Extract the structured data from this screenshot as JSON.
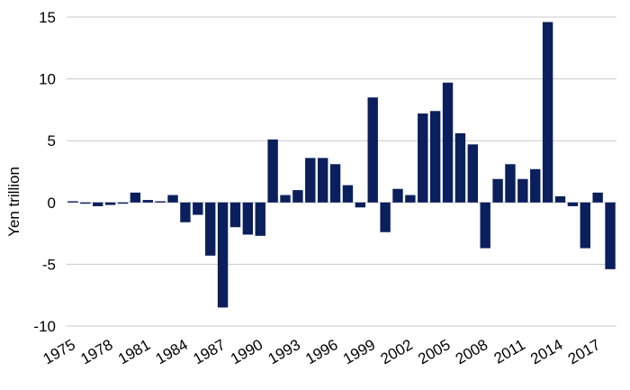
{
  "chart_data": {
    "type": "bar",
    "ylabel": "Yen trillion",
    "xlabel": "",
    "title": "",
    "ylim": [
      -10,
      15
    ],
    "yticks": [
      -10,
      -5,
      0,
      5,
      10,
      15
    ],
    "ytick_labels": [
      "-10",
      "-5",
      "0",
      "5",
      "10",
      "15"
    ],
    "xtick_labels": [
      "1975",
      "1978",
      "1981",
      "1984",
      "1987",
      "1990",
      "1993",
      "1996",
      "1999",
      "2002",
      "2005",
      "2008",
      "2011",
      "2014",
      "2017"
    ],
    "grid": "horizontal",
    "bar_color": "#0a1f5c",
    "categories": [
      "1975",
      "1976",
      "1977",
      "1978",
      "1979",
      "1980",
      "1981",
      "1982",
      "1983",
      "1984",
      "1985",
      "1986",
      "1987",
      "1988",
      "1989",
      "1990",
      "1991",
      "1992",
      "1993",
      "1994",
      "1995",
      "1996",
      "1997",
      "1998",
      "1999",
      "2000",
      "2001",
      "2002",
      "2003",
      "2004",
      "2005",
      "2006",
      "2007",
      "2008",
      "2009",
      "2010",
      "2011",
      "2012",
      "2013",
      "2014",
      "2015",
      "2016",
      "2017",
      "2018"
    ],
    "values": [
      0.1,
      -0.1,
      -0.3,
      -0.2,
      -0.1,
      0.8,
      0.2,
      0.1,
      0.6,
      -1.6,
      -1.0,
      -4.3,
      -8.5,
      -2.0,
      -2.6,
      -2.7,
      5.1,
      0.6,
      1.0,
      3.6,
      3.6,
      3.1,
      1.4,
      -0.4,
      8.5,
      -2.4,
      1.1,
      0.6,
      7.2,
      7.4,
      9.7,
      5.6,
      4.7,
      -3.7,
      1.9,
      3.1,
      1.9,
      2.7,
      14.6,
      0.5,
      -0.3,
      -3.7,
      0.8,
      -5.4
    ]
  }
}
